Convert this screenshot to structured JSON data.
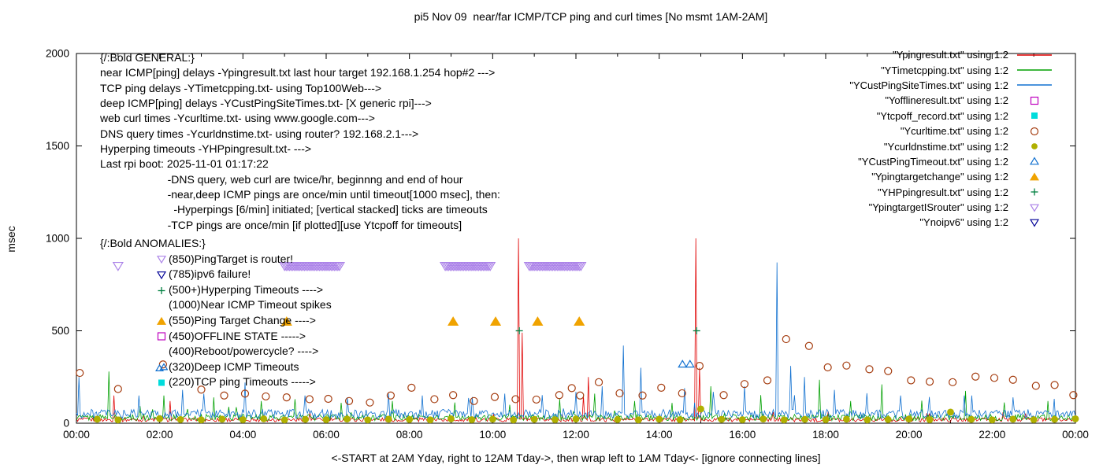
{
  "chart_data": {
    "type": "line",
    "title": "pi5 Nov 09  near/far ICMP/TCP ping and curl times [No msmt 1AM-2AM]",
    "xlabel": "<-START at 2AM Yday, right to 12AM Tday->, then wrap left to 1AM Tday<- [ignore connecting lines]",
    "ylabel": "msec",
    "xlim": [
      0,
      24
    ],
    "ylim": [
      0,
      2000
    ],
    "y_ticks": [
      0,
      500,
      1000,
      1500,
      2000
    ],
    "y_tick_labels": [
      "0",
      "500",
      "1000",
      "1500",
      "2000"
    ],
    "x_tick_labels": [
      "00:00",
      "02:00",
      "04:00",
      "06:00",
      "08:00",
      "10:00",
      "12:00",
      "14:00",
      "16:00",
      "18:00",
      "20:00",
      "22:00",
      "00:00"
    ],
    "grid": false,
    "legend_position": "top-right",
    "series": [
      {
        "name": "Ypingresult.txt",
        "legend": "\"Ypingresult.txt\" using 1:2",
        "style": "line",
        "color": "#e00000",
        "baseline": {
          "min": 8,
          "max": 30
        },
        "spikes": [
          [
            0.9,
            150
          ],
          [
            2.25,
            120
          ],
          [
            10.62,
            1000
          ],
          [
            10.7,
            490
          ],
          [
            12.18,
            150
          ],
          [
            12.3,
            250
          ],
          [
            14.88,
            1000
          ],
          [
            14.97,
            300
          ]
        ]
      },
      {
        "name": "YTimetcpping.txt",
        "legend": "\"YTimetcpping.txt\" using 1:2",
        "style": "line",
        "color": "#00a000",
        "baseline": {
          "min": 14,
          "max": 48
        },
        "spikes": [
          [
            0.78,
            280
          ],
          [
            2.1,
            150
          ],
          [
            3.3,
            140
          ],
          [
            4.45,
            120
          ],
          [
            5.25,
            130
          ],
          [
            6.35,
            110
          ],
          [
            7.6,
            120
          ],
          [
            9.1,
            112
          ],
          [
            10.4,
            100
          ],
          [
            11.6,
            130
          ],
          [
            12.45,
            160
          ],
          [
            13.4,
            120
          ],
          [
            14.3,
            110
          ],
          [
            15.25,
            200
          ],
          [
            16.45,
            152
          ],
          [
            17.85,
            235
          ],
          [
            18.6,
            120
          ],
          [
            19.35,
            210
          ],
          [
            20.3,
            122
          ],
          [
            21.35,
            175
          ],
          [
            22.3,
            112
          ],
          [
            23.35,
            120
          ]
        ]
      },
      {
        "name": "YCustPingSiteTimes.txt",
        "legend": "\"YCustPingSiteTimes.txt\" using 1:2",
        "style": "line",
        "color": "#1070d0",
        "baseline": {
          "min": 25,
          "max": 75
        },
        "spikes": [
          [
            0.06,
            250
          ],
          [
            1.5,
            150
          ],
          [
            2.55,
            180
          ],
          [
            3.05,
            160
          ],
          [
            4.05,
            220
          ],
          [
            5.5,
            150
          ],
          [
            6.5,
            140
          ],
          [
            7.5,
            160
          ],
          [
            8.3,
            150
          ],
          [
            9.5,
            142
          ],
          [
            10.3,
            160
          ],
          [
            11.2,
            152
          ],
          [
            12.0,
            170
          ],
          [
            12.62,
            200
          ],
          [
            13.15,
            420
          ],
          [
            13.55,
            300
          ],
          [
            14.6,
            190
          ],
          [
            15.3,
            170
          ],
          [
            16.05,
            200
          ],
          [
            16.82,
            870
          ],
          [
            17.15,
            310
          ],
          [
            17.5,
            250
          ],
          [
            18.2,
            180
          ],
          [
            19.0,
            162
          ],
          [
            19.8,
            150
          ],
          [
            20.5,
            142
          ],
          [
            21.5,
            150
          ],
          [
            22.5,
            140
          ],
          [
            23.5,
            132
          ]
        ]
      },
      {
        "name": "Yofflineresult.txt",
        "legend": "\"Yofflineresult.txt\" using 1:2",
        "style": "square-open",
        "color": "#bf00bf",
        "points": []
      },
      {
        "name": "Ytcpoff_record.txt",
        "legend": "\"Ytcpoff_record.txt\" using 1:2",
        "style": "square-filled",
        "color": "#00dcdc",
        "points": []
      },
      {
        "name": "Ycurltime.txt",
        "legend": "\"Ycurltime.txt\" using 1:2",
        "style": "circle-open",
        "color": "#a53d10",
        "points": [
          [
            0.08,
            272
          ],
          [
            1,
            185
          ],
          [
            2.08,
            318
          ],
          [
            3,
            182
          ],
          [
            3.55,
            150
          ],
          [
            4.05,
            160
          ],
          [
            4.55,
            145
          ],
          [
            5.05,
            140
          ],
          [
            5.6,
            130
          ],
          [
            6.05,
            132
          ],
          [
            6.55,
            120
          ],
          [
            7.05,
            112
          ],
          [
            7.55,
            150
          ],
          [
            8.05,
            192
          ],
          [
            8.6,
            130
          ],
          [
            9.05,
            152
          ],
          [
            9.55,
            120
          ],
          [
            10.05,
            142
          ],
          [
            10.55,
            130
          ],
          [
            11.05,
            128
          ],
          [
            11.6,
            152
          ],
          [
            11.9,
            190
          ],
          [
            12.1,
            150
          ],
          [
            12.55,
            222
          ],
          [
            13.05,
            162
          ],
          [
            13.6,
            150
          ],
          [
            14.05,
            192
          ],
          [
            14.55,
            162
          ],
          [
            14.97,
            310
          ],
          [
            15.55,
            152
          ],
          [
            16.05,
            212
          ],
          [
            16.6,
            232
          ],
          [
            17.05,
            455
          ],
          [
            17.6,
            418
          ],
          [
            18.05,
            302
          ],
          [
            18.5,
            312
          ],
          [
            19.05,
            292
          ],
          [
            19.5,
            282
          ],
          [
            20.05,
            232
          ],
          [
            20.5,
            225
          ],
          [
            21.05,
            222
          ],
          [
            21.6,
            252
          ],
          [
            22.05,
            245
          ],
          [
            22.5,
            235
          ],
          [
            23.05,
            202
          ],
          [
            23.5,
            207
          ],
          [
            23.95,
            152
          ]
        ]
      },
      {
        "name": "Ycurldnstime.txt",
        "legend": "\"Ycurldnstime.txt\" using 1:2",
        "style": "circle-filled",
        "color": "#b0b000",
        "size": 5,
        "points": [
          [
            0.5,
            22
          ],
          [
            1,
            18
          ],
          [
            2,
            25
          ],
          [
            2.5,
            20
          ],
          [
            3,
            18
          ],
          [
            3.5,
            22
          ],
          [
            4,
            19
          ],
          [
            4.5,
            24
          ],
          [
            5,
            18
          ],
          [
            5.5,
            21
          ],
          [
            6,
            19
          ],
          [
            6.5,
            23
          ],
          [
            7,
            18
          ],
          [
            7.5,
            22
          ],
          [
            8,
            20
          ],
          [
            8.5,
            18
          ],
          [
            9,
            24
          ],
          [
            9.5,
            19
          ],
          [
            10,
            22
          ],
          [
            10.5,
            18
          ],
          [
            11,
            21
          ],
          [
            11.5,
            19
          ],
          [
            12,
            23
          ],
          [
            13,
            20
          ],
          [
            13.5,
            18
          ],
          [
            14,
            22
          ],
          [
            14.5,
            19
          ],
          [
            15,
            77
          ],
          [
            15.5,
            21
          ],
          [
            16,
            19
          ],
          [
            16.5,
            23
          ],
          [
            17,
            18
          ],
          [
            17.5,
            21
          ],
          [
            18,
            19
          ],
          [
            18.5,
            22
          ],
          [
            19,
            18
          ],
          [
            19.5,
            20
          ],
          [
            20,
            23
          ],
          [
            20.5,
            19
          ],
          [
            21,
            60
          ],
          [
            21.5,
            21
          ],
          [
            22,
            18
          ],
          [
            22.5,
            22
          ],
          [
            23,
            19
          ],
          [
            23.5,
            21
          ],
          [
            24,
            24
          ]
        ]
      },
      {
        "name": "YCustPingTimeout.txt",
        "legend": "\"YCustPingTimeout.txt\" using 1:2",
        "style": "triangle-up-open",
        "color": "#1070d0",
        "points": [
          [
            14.56,
            320
          ],
          [
            14.74,
            320
          ]
        ]
      },
      {
        "name": "Ypingtargetchange",
        "legend": "\"Ypingtargetchange\" using 1:2",
        "style": "triangle-up-filled",
        "color": "#f0a300",
        "size": 5.5,
        "points": [
          [
            5.05,
            550
          ],
          [
            9.05,
            550
          ],
          [
            10.07,
            550
          ],
          [
            11.08,
            550
          ],
          [
            12.08,
            550
          ]
        ]
      },
      {
        "name": "YHPpingresult.txt",
        "legend": "\"YHPpingresult.txt\" using 1:2",
        "style": "plus",
        "color": "#008040",
        "points": [
          [
            10.64,
            500
          ],
          [
            14.9,
            500
          ]
        ]
      },
      {
        "name": "YpingtargetISrouter",
        "legend": "\"YpingtargetISrouter\" using 1:2",
        "style": "triangle-down-open",
        "color": "#ab82e8",
        "size": 5.5,
        "points": [
          [
            1,
            850
          ]
        ],
        "clusters": [
          [
            5.0,
            6.33
          ],
          [
            8.86,
            9.94
          ],
          [
            10.88,
            12.15
          ]
        ],
        "cluster_value": 850
      },
      {
        "name": "Ynoipv6",
        "legend": "\"Ynoipv6\" using 1:2",
        "style": "triangle-down-open",
        "color": "#000096",
        "points": []
      }
    ]
  },
  "annotations": {
    "general": {
      "heading": "{/:Bold GENERAL:}",
      "lines": [
        "near ICMP[ping] delays -Ypingresult.txt last hour target 192.168.1.254 hop#2 --->",
        "TCP ping delays -YTimetcpping.txt- using Top100Web--->",
        "deep ICMP[ping] delays -YCustPingSiteTimes.txt- [X generic rpi]--->",
        "web curl times -Ycurltime.txt- using www.google.com--->",
        "DNS query times -Ycurldnstime.txt- using router? 192.168.2.1--->",
        "Hyperping timeouts -YHPpingresult.txt- --->",
        "Last rpi boot: 2025-11-01 01:17:22",
        "                      -DNS query, web curl are twice/hr, beginnng and end of hour",
        "                      -near,deep ICMP pings are once/min until timeout[1000 msec], then:",
        "                        -Hyperpings [6/min] initiated; [vertical stacked] ticks are timeouts",
        "                      -TCP pings are once/min [if plotted][use Ytcpoff for timeouts]"
      ]
    },
    "anomalies": {
      "heading": "{/:Bold ANOMALIES:}",
      "rows": [
        {
          "marker": "triangle-down-open",
          "color": "#ab82e8",
          "text": "(850)PingTarget is router!"
        },
        {
          "marker": "triangle-down-open",
          "color": "#000096",
          "text": "(785)ipv6 failure!"
        },
        {
          "marker": "plus",
          "color": "#008040",
          "text": "(500+)Hyperping Timeouts ---->"
        },
        {
          "marker": null,
          "text": "(1000)Near ICMP Timeout spikes"
        },
        {
          "marker": "triangle-up-filled",
          "color": "#f0a300",
          "text": "(550)Ping Target Change ---->"
        },
        {
          "marker": "square-open",
          "color": "#bf00bf",
          "text": "(450)OFFLINE STATE ----->"
        },
        {
          "marker": null,
          "text": "(400)Reboot/powercycle? ---->"
        },
        {
          "marker": "triangle-up-open",
          "color": "#1070d0",
          "repeat": 2,
          "text": "(320)Deep ICMP Timeouts"
        },
        {
          "marker": "square-filled",
          "color": "#00dcdc",
          "text": "(220)TCP ping Timeouts ----->"
        }
      ]
    }
  }
}
